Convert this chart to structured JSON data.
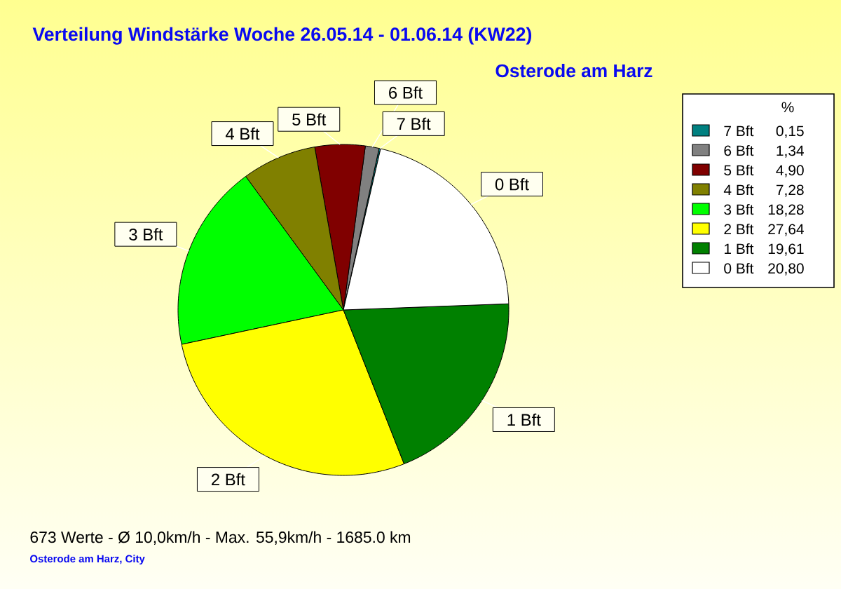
{
  "chart_data": {
    "type": "pie",
    "title": "Verteilung Windstärke  Woche 26.05.14 - 01.06.14 (KW22)",
    "subtitle": "Osterode am Harz",
    "legend_title": "%",
    "categories": [
      "7 Bft",
      "6 Bft",
      "5 Bft",
      "4 Bft",
      "3 Bft",
      "2 Bft",
      "1 Bft",
      "0 Bft"
    ],
    "values": [
      0.15,
      1.34,
      4.9,
      7.28,
      18.28,
      27.64,
      19.61,
      20.8
    ],
    "value_labels": [
      "0,15",
      "1,34",
      "4,90",
      "7,28",
      "18,28",
      "27,64",
      "19,61",
      "20,80"
    ],
    "colors": [
      "#008080",
      "#808080",
      "#800000",
      "#808000",
      "#00ff00",
      "#ffff00",
      "#008000",
      "#ffffff"
    ],
    "legend": "top right",
    "annotations": [
      "673 Werte - Ø 10,0km/h - Max. 55,9km/h - 1685.0 km",
      "Osterode am Harz, City"
    ]
  }
}
